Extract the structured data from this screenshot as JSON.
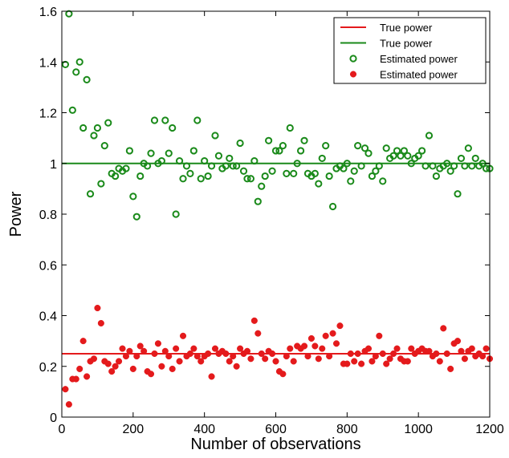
{
  "chart_data": {
    "type": "scatter",
    "title": "",
    "xlabel": "Number of observations",
    "ylabel": "Power",
    "xlim": [
      0,
      1200
    ],
    "ylim": [
      0,
      1.6
    ],
    "xticks": [
      "0",
      "200",
      "400",
      "600",
      "800",
      "1000",
      "1200"
    ],
    "yticks": [
      "0",
      "0.2",
      "0.4",
      "0.6",
      "0.8",
      "1",
      "1.2",
      "1.4",
      "1.6"
    ],
    "grid": false,
    "legend_position": "top-right",
    "series": [
      {
        "name": "True power",
        "kind": "line",
        "color": "#e41a1c",
        "x": [
          0,
          1200
        ],
        "y": [
          0.25,
          0.25
        ]
      },
      {
        "name": "True power",
        "kind": "line",
        "color": "#1a8a1a",
        "x": [
          0,
          1200
        ],
        "y": [
          1.0,
          1.0
        ]
      },
      {
        "name": "Estimated power",
        "kind": "scatter",
        "marker": "open-circle",
        "color": "#1a8a1a",
        "x": [
          10,
          20,
          30,
          40,
          50,
          60,
          70,
          80,
          90,
          100,
          110,
          120,
          130,
          140,
          150,
          160,
          170,
          180,
          190,
          200,
          210,
          220,
          230,
          240,
          250,
          260,
          270,
          280,
          290,
          300,
          310,
          320,
          330,
          340,
          350,
          360,
          370,
          380,
          390,
          400,
          410,
          420,
          430,
          440,
          450,
          460,
          470,
          480,
          490,
          500,
          510,
          520,
          530,
          540,
          550,
          560,
          570,
          580,
          590,
          600,
          610,
          620,
          630,
          640,
          650,
          660,
          670,
          680,
          690,
          700,
          710,
          720,
          730,
          740,
          750,
          760,
          770,
          780,
          790,
          800,
          810,
          820,
          830,
          840,
          850,
          860,
          870,
          880,
          890,
          900,
          910,
          920,
          930,
          940,
          950,
          960,
          970,
          980,
          990,
          1000,
          1010,
          1020,
          1030,
          1040,
          1050,
          1060,
          1070,
          1080,
          1090,
          1100,
          1110,
          1120,
          1130,
          1140,
          1150,
          1160,
          1170,
          1180,
          1190,
          1200
        ],
        "y": [
          1.39,
          1.59,
          1.21,
          1.36,
          1.4,
          1.14,
          1.33,
          0.88,
          1.11,
          1.14,
          0.92,
          1.07,
          1.16,
          0.96,
          0.95,
          0.98,
          0.97,
          0.98,
          1.05,
          0.87,
          0.79,
          0.95,
          1.0,
          0.99,
          1.04,
          1.17,
          1.0,
          1.01,
          1.17,
          1.04,
          1.14,
          0.8,
          1.01,
          0.94,
          0.99,
          0.96,
          1.05,
          1.17,
          0.94,
          1.01,
          0.95,
          0.99,
          1.11,
          1.03,
          0.98,
          0.99,
          1.02,
          0.99,
          0.99,
          1.08,
          0.97,
          0.94,
          0.94,
          1.01,
          0.85,
          0.91,
          0.95,
          1.09,
          0.97,
          1.05,
          1.05,
          1.07,
          0.96,
          1.14,
          0.96,
          1.0,
          1.05,
          1.09,
          0.96,
          0.95,
          0.96,
          0.92,
          1.02,
          1.07,
          0.95,
          0.83,
          0.98,
          0.99,
          0.98,
          1.0,
          0.93,
          0.97,
          1.07,
          0.99,
          1.06,
          1.04,
          0.95,
          0.97,
          0.99,
          0.93,
          1.06,
          1.02,
          1.03,
          1.05,
          1.03,
          1.05,
          1.03,
          1.0,
          1.02,
          1.03,
          1.05,
          0.99,
          1.11,
          0.99,
          0.95,
          0.98,
          0.99,
          1.0,
          0.97,
          0.99,
          0.88,
          1.02,
          0.99,
          1.06,
          0.99,
          1.02,
          0.99,
          1.0,
          0.98,
          0.98
        ]
      },
      {
        "name": "Estimated power",
        "kind": "scatter",
        "marker": "filled-circle",
        "color": "#e41a1c",
        "x": [
          10,
          20,
          30,
          40,
          50,
          60,
          70,
          80,
          90,
          100,
          110,
          120,
          130,
          140,
          150,
          160,
          170,
          180,
          190,
          200,
          210,
          220,
          230,
          240,
          250,
          260,
          270,
          280,
          290,
          300,
          310,
          320,
          330,
          340,
          350,
          360,
          370,
          380,
          390,
          400,
          410,
          420,
          430,
          440,
          450,
          460,
          470,
          480,
          490,
          500,
          510,
          520,
          530,
          540,
          550,
          560,
          570,
          580,
          590,
          600,
          610,
          620,
          630,
          640,
          650,
          660,
          670,
          680,
          690,
          700,
          710,
          720,
          730,
          740,
          750,
          760,
          770,
          780,
          790,
          800,
          810,
          820,
          830,
          840,
          850,
          860,
          870,
          880,
          890,
          900,
          910,
          920,
          930,
          940,
          950,
          960,
          970,
          980,
          990,
          1000,
          1010,
          1020,
          1030,
          1040,
          1050,
          1060,
          1070,
          1080,
          1090,
          1100,
          1110,
          1120,
          1130,
          1140,
          1150,
          1160,
          1170,
          1180,
          1190,
          1200
        ],
        "y": [
          0.11,
          0.05,
          0.15,
          0.15,
          0.19,
          0.3,
          0.16,
          0.22,
          0.23,
          0.43,
          0.37,
          0.22,
          0.21,
          0.18,
          0.2,
          0.22,
          0.27,
          0.24,
          0.26,
          0.19,
          0.24,
          0.28,
          0.26,
          0.18,
          0.17,
          0.25,
          0.29,
          0.2,
          0.26,
          0.24,
          0.19,
          0.27,
          0.22,
          0.32,
          0.24,
          0.25,
          0.27,
          0.24,
          0.22,
          0.24,
          0.25,
          0.16,
          0.27,
          0.25,
          0.26,
          0.25,
          0.22,
          0.24,
          0.2,
          0.27,
          0.25,
          0.26,
          0.23,
          0.38,
          0.33,
          0.25,
          0.23,
          0.26,
          0.25,
          0.22,
          0.18,
          0.17,
          0.24,
          0.27,
          0.22,
          0.28,
          0.27,
          0.28,
          0.24,
          0.31,
          0.28,
          0.23,
          0.27,
          0.32,
          0.24,
          0.33,
          0.29,
          0.36,
          0.21,
          0.21,
          0.25,
          0.22,
          0.25,
          0.21,
          0.26,
          0.27,
          0.22,
          0.24,
          0.32,
          0.25,
          0.21,
          0.23,
          0.25,
          0.27,
          0.23,
          0.22,
          0.22,
          0.27,
          0.25,
          0.26,
          0.27,
          0.26,
          0.26,
          0.24,
          0.25,
          0.22,
          0.35,
          0.25,
          0.19,
          0.29,
          0.3,
          0.26,
          0.23,
          0.26,
          0.27,
          0.24,
          0.25,
          0.24,
          0.27,
          0.23
        ]
      }
    ]
  }
}
